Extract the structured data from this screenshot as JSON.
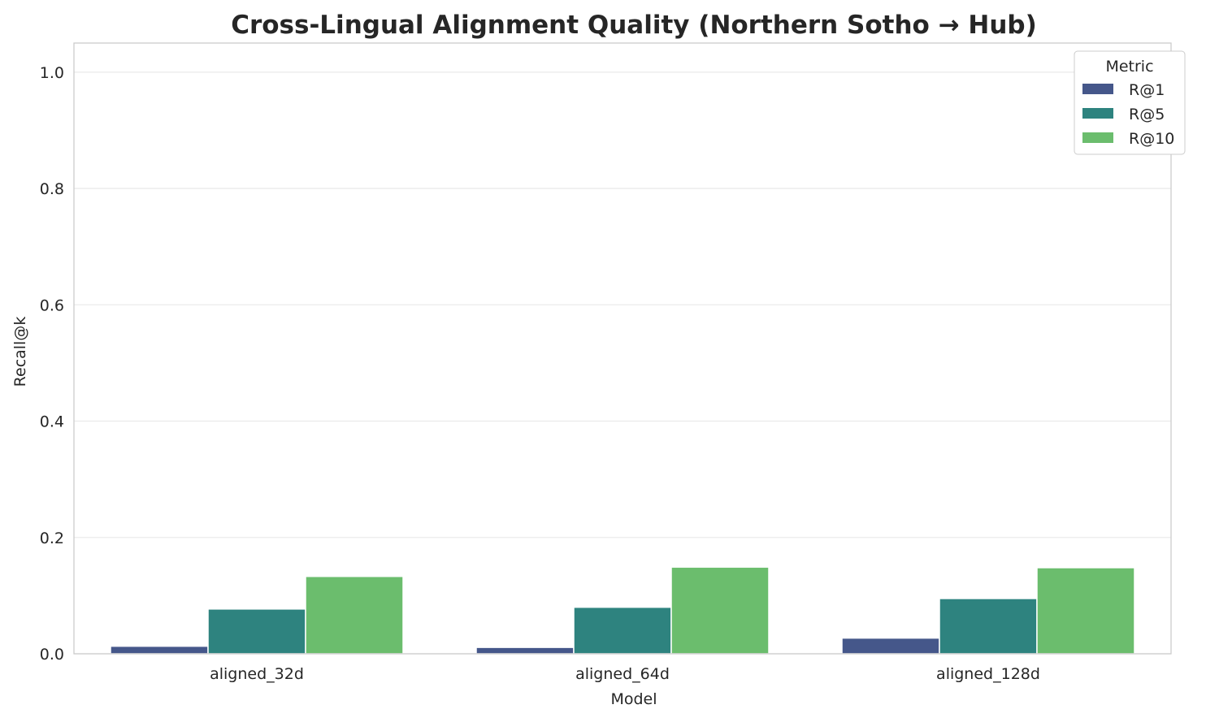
{
  "chart_data": {
    "type": "bar",
    "title": "Cross-Lingual Alignment Quality (Northern Sotho → Hub)",
    "xlabel": "Model",
    "ylabel": "Recall@k",
    "ylim": [
      0,
      1.05
    ],
    "yticks": [
      0.0,
      0.2,
      0.4,
      0.6,
      0.8,
      1.0
    ],
    "grid": "horizontal",
    "categories": [
      "aligned_32d",
      "aligned_64d",
      "aligned_128d"
    ],
    "legend": {
      "title": "Metric",
      "placement": "top-right"
    },
    "series": [
      {
        "name": "R@1",
        "color": "#45578a",
        "values": [
          0.013,
          0.011,
          0.027
        ]
      },
      {
        "name": "R@5",
        "color": "#2e837f",
        "values": [
          0.077,
          0.08,
          0.095
        ]
      },
      {
        "name": "R@10",
        "color": "#6bbd6d",
        "values": [
          0.133,
          0.149,
          0.148
        ]
      }
    ]
  }
}
